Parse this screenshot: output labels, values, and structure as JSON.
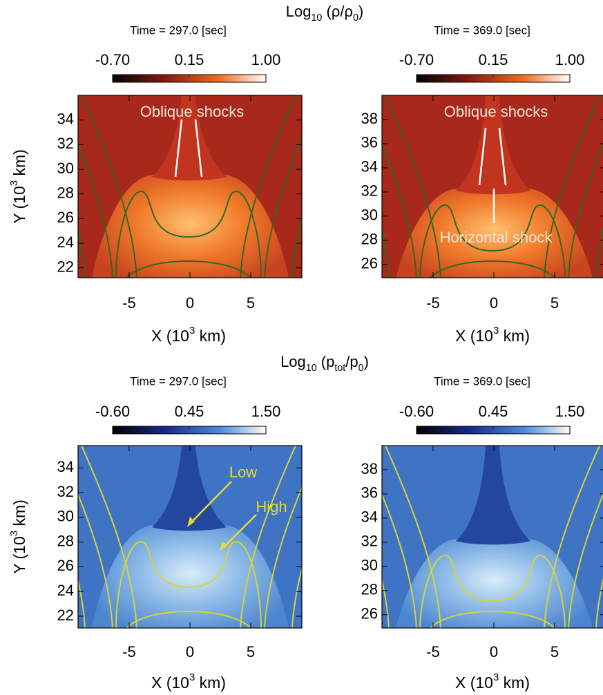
{
  "rows": [
    {
      "title": [
        "Log",
        "10",
        " (ρ/ρ",
        "0",
        ")"
      ],
      "panels": [
        {
          "time": "Time = 297.0 [sec]",
          "colorbar": {
            "ticks": [
              {
                "value": -0.7,
                "label": "-0.70"
              },
              {
                "value": 0.15,
                "label": "0.15"
              },
              {
                "value": 1.0,
                "label": "1.00"
              }
            ]
          },
          "xlim": [
            -9.2,
            9.2
          ],
          "xticks": [
            -5,
            0,
            5
          ],
          "ylim": [
            21.2,
            36
          ],
          "yticks": [
            22,
            24,
            26,
            28,
            30,
            32,
            34
          ],
          "xlabel": [
            "X (10",
            "3",
            " km)"
          ],
          "ylabel": [
            "Y (10",
            "3",
            " km)"
          ],
          "annotations": [
            "Oblique shocks"
          ]
        },
        {
          "time": "Time = 369.0 [sec]",
          "colorbar": {
            "ticks": [
              {
                "value": -0.7,
                "label": "-0.70"
              },
              {
                "value": 0.15,
                "label": "0.15"
              },
              {
                "value": 1.0,
                "label": "1.00"
              }
            ]
          },
          "xlim": [
            -9.2,
            9.2
          ],
          "xticks": [
            -5,
            0,
            5
          ],
          "ylim": [
            24.9,
            40
          ],
          "yticks": [
            26,
            28,
            30,
            32,
            34,
            36,
            38
          ],
          "xlabel": [
            "X (10",
            "3",
            " km)"
          ],
          "annotations": [
            "Oblique shocks",
            "Horizontal shock"
          ]
        }
      ]
    },
    {
      "title": [
        "Log",
        "10",
        " (p",
        "tot",
        "/p",
        "0",
        ")"
      ],
      "panels": [
        {
          "time": "Time = 297.0 [sec]",
          "colorbar": {
            "ticks": [
              {
                "value": -0.6,
                "label": "-0.60"
              },
              {
                "value": 0.45,
                "label": "0.45"
              },
              {
                "value": 1.5,
                "label": "1.50"
              }
            ]
          },
          "xlim": [
            -9.2,
            9.2
          ],
          "xticks": [
            -5,
            0,
            5
          ],
          "ylim": [
            21.05,
            35.8
          ],
          "yticks": [
            22,
            24,
            26,
            28,
            30,
            32,
            34
          ],
          "xlabel": [
            "X (10",
            "3",
            " km)"
          ],
          "ylabel": [
            "Y (10",
            "3",
            " km)"
          ],
          "annotations": [
            "Low",
            "High"
          ]
        },
        {
          "time": "Time = 369.0 [sec]",
          "colorbar": {
            "ticks": [
              {
                "value": -0.6,
                "label": "-0.60"
              },
              {
                "value": 0.45,
                "label": "0.45"
              },
              {
                "value": 1.5,
                "label": "1.50"
              }
            ]
          },
          "xlim": [
            -9.2,
            9.2
          ],
          "xticks": [
            -5,
            0,
            5
          ],
          "ylim": [
            24.9,
            40
          ],
          "yticks": [
            26,
            28,
            30,
            32,
            34,
            36,
            38
          ],
          "xlabel": [
            "X (10",
            "3",
            " km)"
          ],
          "annotations": []
        }
      ]
    }
  ]
}
